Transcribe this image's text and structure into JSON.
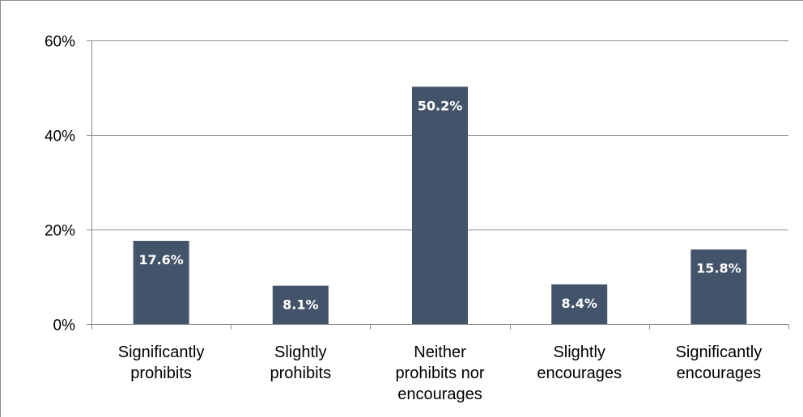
{
  "chart_data": {
    "type": "bar",
    "categories": [
      [
        "Significantly",
        "prohibits"
      ],
      [
        "Slightly",
        "prohibits"
      ],
      [
        "Neither",
        "prohibits nor",
        "encourages"
      ],
      [
        "Slightly",
        "encourages"
      ],
      [
        "Significantly",
        "encourages"
      ]
    ],
    "values": [
      17.6,
      8.1,
      50.2,
      8.4,
      15.8
    ],
    "data_labels": [
      "17.6%",
      "8.1%",
      "50.2%",
      "8.4%",
      "15.8%"
    ],
    "y_ticks": [
      {
        "value": 0,
        "label": "0%"
      },
      {
        "value": 20,
        "label": "20%"
      },
      {
        "value": 40,
        "label": "40%"
      },
      {
        "value": 60,
        "label": "60%"
      }
    ],
    "ylim": [
      0,
      60
    ],
    "grid": true,
    "legend": "none",
    "title": "",
    "xlabel": "",
    "ylabel": "",
    "colors": {
      "bar": "#435369",
      "gridline": "#8c8c8c",
      "axis": "#8c8c8c",
      "border": "#8c8c8c",
      "data_label": "#ffffff"
    }
  }
}
